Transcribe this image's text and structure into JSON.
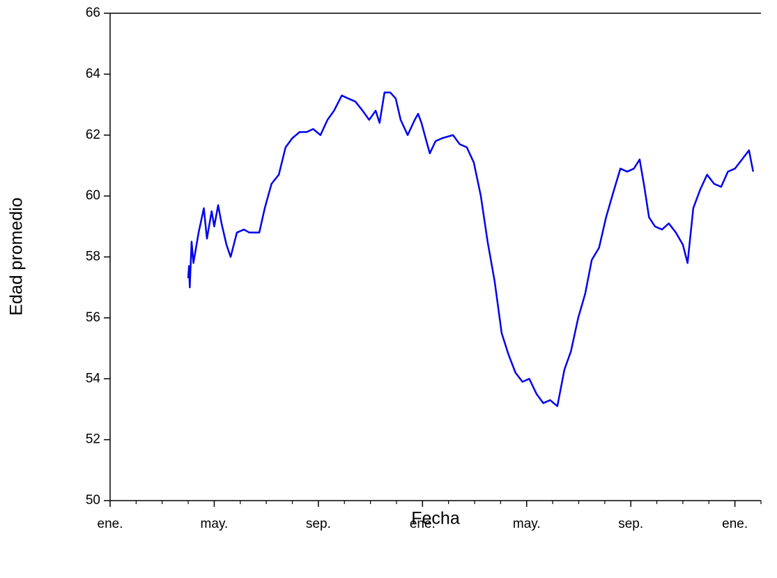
{
  "chart_data": {
    "type": "line",
    "x_label": "Fecha",
    "y_label": "Edad promedio",
    "xlim": [
      0,
      25
    ],
    "ylim": [
      50,
      66
    ],
    "xticks": [
      {
        "value": 0,
        "label": "ene."
      },
      {
        "value": 4,
        "label": "may."
      },
      {
        "value": 8,
        "label": "sep."
      },
      {
        "value": 12,
        "label": "ene."
      },
      {
        "value": 16,
        "label": "may."
      },
      {
        "value": 20,
        "label": "sep."
      },
      {
        "value": 24,
        "label": "ene."
      }
    ],
    "xminor_ticks": [
      1,
      2,
      3,
      5,
      6,
      7,
      9,
      10,
      11,
      13,
      14,
      15,
      17,
      18,
      19,
      21,
      22,
      23,
      25
    ],
    "yticks": [
      50,
      52,
      54,
      56,
      58,
      60,
      62,
      64,
      66
    ],
    "series": [
      {
        "name": "Edad promedio",
        "color": "#0000ee",
        "x": [
          3.0,
          3.03,
          3.06,
          3.13,
          3.2,
          3.4,
          3.6,
          3.72,
          3.9,
          4.0,
          4.15,
          4.28,
          4.47,
          4.63,
          4.87,
          5.14,
          5.35,
          5.73,
          5.94,
          6.2,
          6.48,
          6.74,
          7.0,
          7.28,
          7.55,
          7.8,
          8.08,
          8.35,
          8.6,
          8.9,
          9.15,
          9.42,
          9.7,
          9.95,
          10.2,
          10.35,
          10.54,
          10.76,
          10.97,
          11.16,
          11.43,
          11.7,
          11.83,
          11.96,
          12.15,
          12.28,
          12.5,
          12.76,
          13.17,
          13.43,
          13.7,
          13.97,
          14.24,
          14.5,
          14.77,
          15.04,
          15.3,
          15.57,
          15.84,
          16.1,
          16.38,
          16.64,
          16.9,
          17.18,
          17.45,
          17.7,
          17.98,
          18.25,
          18.5,
          18.78,
          19.05,
          19.32,
          19.6,
          19.86,
          20.12,
          20.34,
          20.52,
          20.7,
          20.93,
          21.2,
          21.46,
          21.73,
          22.0,
          22.18,
          22.4,
          22.66,
          22.93,
          23.2,
          23.47,
          23.73,
          24.0,
          24.27,
          24.54,
          24.7
        ],
        "values": [
          57.3,
          57.7,
          57.0,
          58.5,
          57.8,
          58.8,
          59.6,
          58.6,
          59.5,
          59.0,
          59.7,
          59.1,
          58.4,
          58.0,
          58.8,
          58.9,
          58.8,
          58.8,
          59.6,
          60.4,
          60.7,
          61.6,
          61.9,
          62.1,
          62.1,
          62.2,
          62.0,
          62.5,
          62.8,
          63.3,
          63.2,
          63.1,
          62.8,
          62.5,
          62.8,
          62.4,
          63.4,
          63.4,
          63.2,
          62.5,
          62.0,
          62.5,
          62.7,
          62.4,
          61.8,
          61.4,
          61.8,
          61.9,
          62.0,
          61.7,
          61.6,
          61.1,
          60.0,
          58.5,
          57.2,
          55.5,
          54.8,
          54.2,
          53.9,
          54.0,
          53.5,
          53.2,
          53.3,
          53.1,
          54.3,
          54.9,
          56.0,
          56.8,
          57.9,
          58.3,
          59.3,
          60.1,
          60.9,
          60.8,
          60.9,
          61.2,
          60.3,
          59.3,
          59.0,
          58.9,
          59.1,
          58.8,
          58.4,
          57.8,
          59.6,
          60.2,
          60.7,
          60.4,
          60.3,
          60.8,
          60.9,
          61.2,
          61.5,
          60.8
        ]
      }
    ]
  }
}
